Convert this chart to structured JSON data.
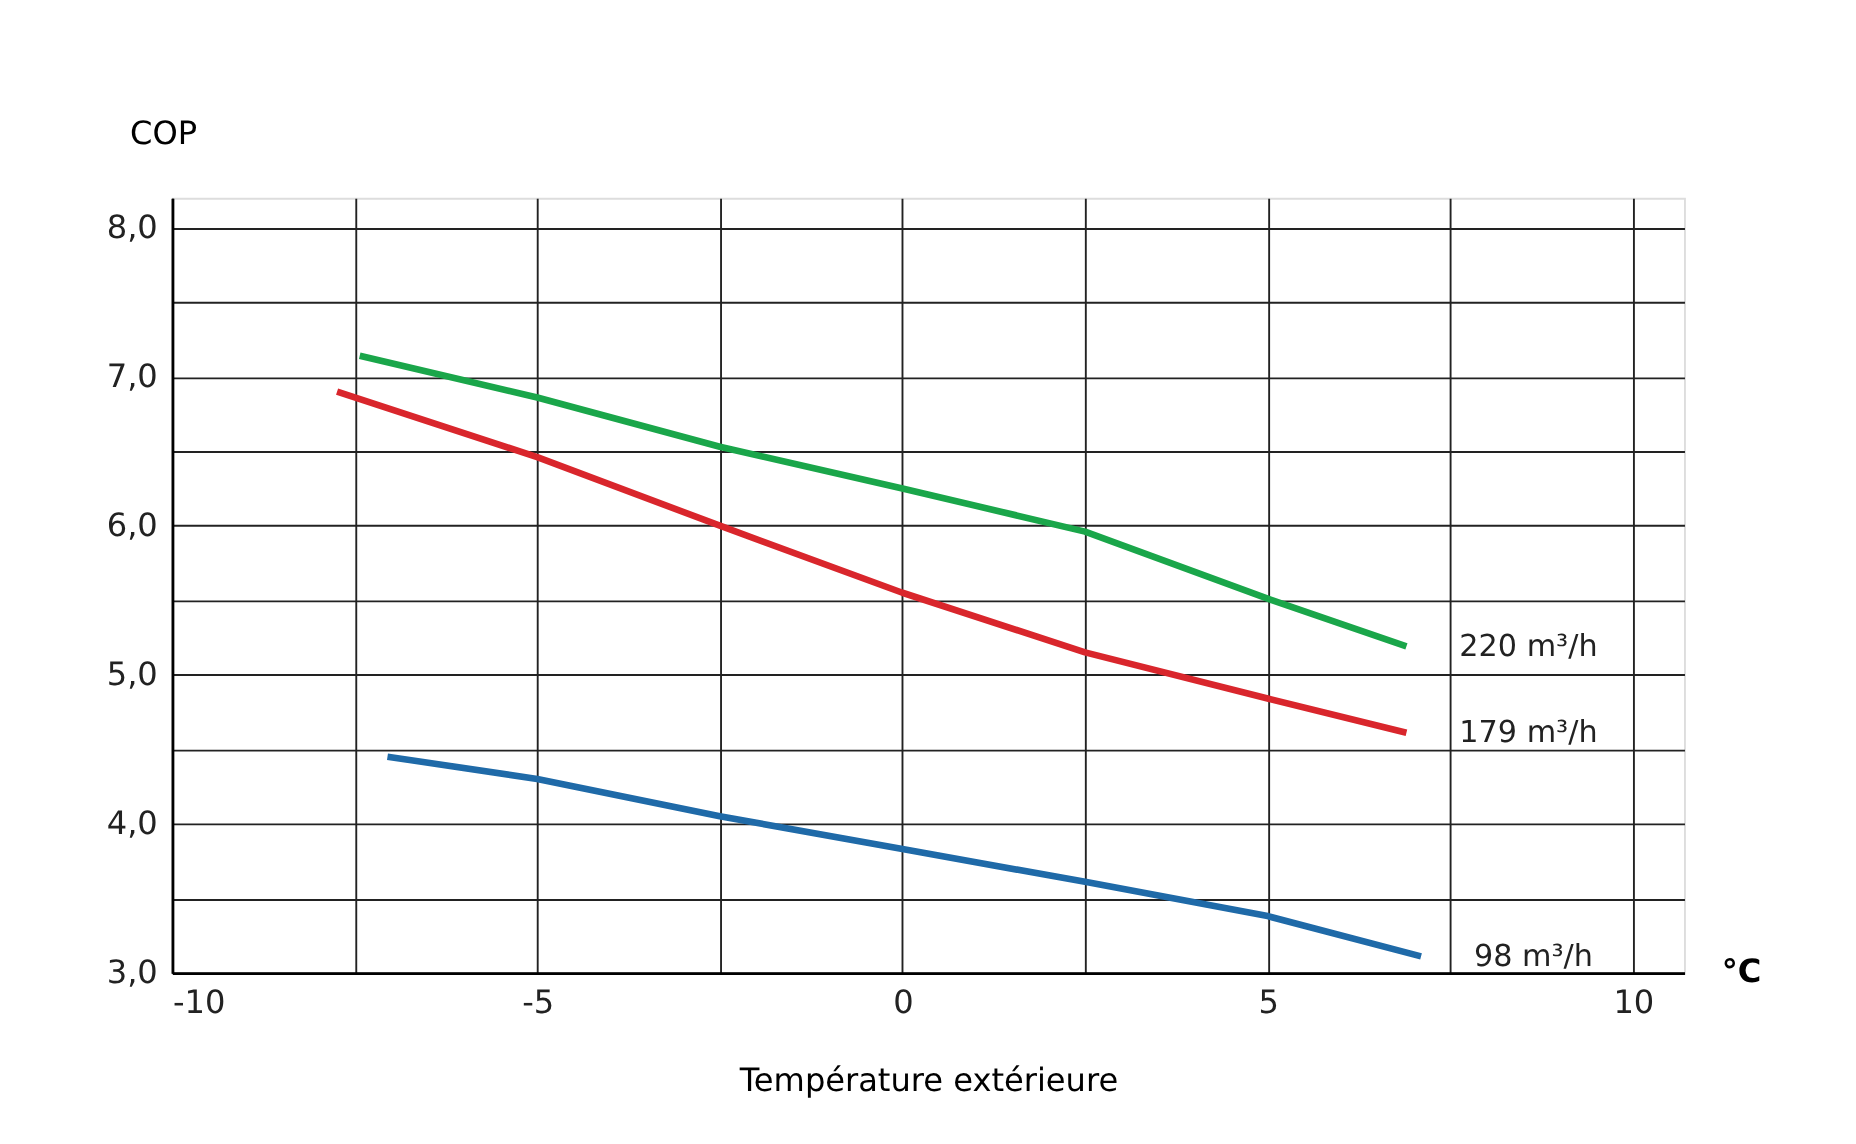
{
  "chart_data": {
    "type": "line",
    "xlabel": "Température extérieure",
    "ylabel": "COP",
    "annotations": [
      "°C"
    ],
    "xlim": [
      -10,
      10.7
    ],
    "ylim": [
      3,
      8.2
    ],
    "xticks": [
      {
        "value": -10,
        "label": "-10"
      },
      {
        "value": -7.5,
        "label": null
      },
      {
        "value": -5,
        "label": "-5"
      },
      {
        "value": -2.5,
        "label": null
      },
      0,
      {
        "value": 2.5,
        "label": null
      },
      5,
      {
        "value": 7.5,
        "label": null
      },
      10
    ],
    "yticks": [
      {
        "value": 3,
        "label": "3,0"
      },
      {
        "value": 3.5,
        "label": null
      },
      {
        "value": 4,
        "label": "4,0"
      },
      {
        "value": 4.5,
        "label": null
      },
      {
        "value": 5,
        "label": "5,0"
      },
      {
        "value": 5.5,
        "label": null
      },
      {
        "value": 6,
        "label": "6,0"
      },
      {
        "value": 6.5,
        "label": null
      },
      {
        "value": 7,
        "label": "7,0"
      },
      {
        "value": 7.5,
        "label": null
      },
      {
        "value": 8,
        "label": "8,0"
      }
    ],
    "grid": true,
    "legend": false,
    "marker": "none",
    "line_style": "solid",
    "series": [
      {
        "name": "220 m³/h",
        "color": "#1aa64a",
        "x": [
          -7.43,
          -5,
          -2.5,
          0,
          2.5,
          5,
          6.9
        ],
        "values": [
          7.14,
          6.86,
          6.53,
          6.25,
          5.96,
          5.51,
          5.19
        ]
      },
      {
        "name": "179 m³/h",
        "color": "#d9262c",
        "x": [
          -7.74,
          -5,
          -2.5,
          0,
          2.5,
          5,
          6.9
        ],
        "values": [
          6.9,
          6.46,
          6.0,
          5.55,
          5.15,
          4.84,
          4.61
        ]
      },
      {
        "name": "98 m³/h",
        "color": "#1f6aa8",
        "x": [
          -7.05,
          -5,
          -2.5,
          0,
          2.5,
          5,
          7.1
        ],
        "values": [
          4.45,
          4.3,
          4.05,
          3.83,
          3.61,
          3.38,
          3.11
        ]
      }
    ]
  }
}
